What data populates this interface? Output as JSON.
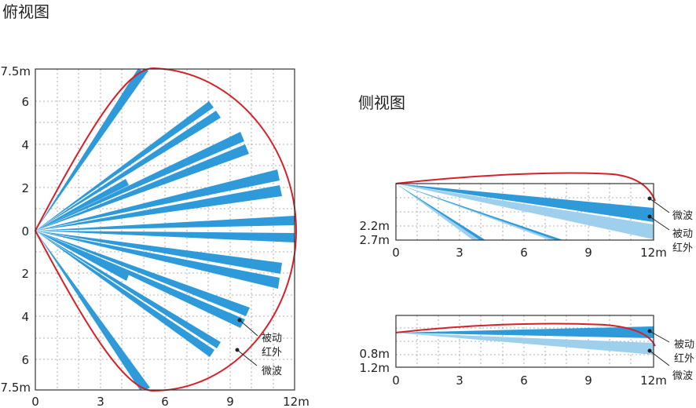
{
  "colors": {
    "ir_beam": "#2e9ad9",
    "ir_beam_light": "#9ed0ee",
    "microwave": "#d6212a",
    "grid": "#9a9a9a"
  },
  "top_view": {
    "title": "俯视图",
    "x_ticks": [
      "0",
      "3",
      "6",
      "9",
      "12m"
    ],
    "y_ticks": [
      "7.5m",
      "6",
      "4",
      "2",
      "0",
      "2",
      "4",
      "6",
      "7.5m"
    ],
    "labels": {
      "pir": "被动\n红外",
      "microwave": "微波"
    }
  },
  "side_view": {
    "title": "侧视图",
    "chart1": {
      "x_ticks": [
        "0",
        "3",
        "6",
        "9",
        "12m"
      ],
      "y_labels": [
        "2.2m",
        "2.7m"
      ],
      "labels": {
        "microwave": "微波",
        "pir": "被动\n红外"
      }
    },
    "chart2": {
      "x_ticks": [
        "0",
        "3",
        "6",
        "9",
        "12m"
      ],
      "y_labels": [
        "0.8m",
        "1.2m"
      ],
      "labels": {
        "pir": "被动\n红外",
        "microwave": "微波"
      }
    }
  }
}
